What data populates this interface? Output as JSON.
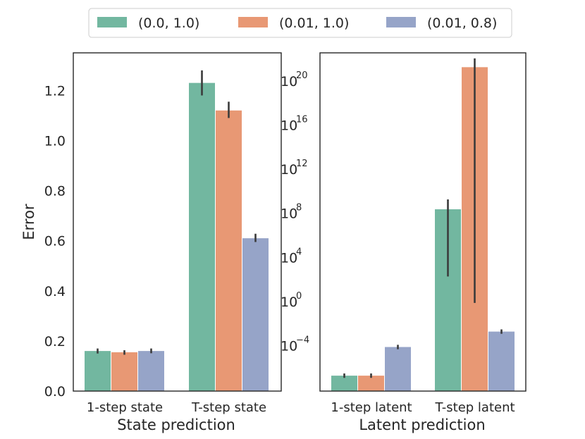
{
  "legend": {
    "entries": [
      "(0.0, 1.0)",
      "(0.01, 1.0)",
      "(0.01, 0.8)"
    ],
    "colors": [
      "#72b7a0",
      "#e89874",
      "#96a4c8"
    ]
  },
  "chart_data": [
    {
      "type": "bar",
      "title": "",
      "xlabel": "State prediction",
      "ylabel": "Error",
      "yscale": "linear",
      "ylim": [
        0,
        1.35
      ],
      "yticks": [
        0.0,
        0.2,
        0.4,
        0.6,
        0.8,
        1.0,
        1.2
      ],
      "ytick_labels": [
        "0.0",
        "0.2",
        "0.4",
        "0.6",
        "0.8",
        "1.0",
        "1.2"
      ],
      "categories": [
        "1-step state",
        "T-step state"
      ],
      "series": [
        {
          "name": "(0.0, 1.0)",
          "values": [
            0.16,
            1.23
          ],
          "err_low": [
            0.15,
            1.18
          ],
          "err_high": [
            0.17,
            1.28
          ]
        },
        {
          "name": "(0.01, 1.0)",
          "values": [
            0.155,
            1.12
          ],
          "err_low": [
            0.145,
            1.09
          ],
          "err_high": [
            0.163,
            1.155
          ]
        },
        {
          "name": "(0.01, 0.8)",
          "values": [
            0.16,
            0.61
          ],
          "err_low": [
            0.151,
            0.595
          ],
          "err_high": [
            0.17,
            0.628
          ]
        }
      ]
    },
    {
      "type": "bar",
      "title": "",
      "xlabel": "Latent prediction",
      "ylabel": "",
      "yscale": "log",
      "ylim_log10": [
        -8.2,
        22.5
      ],
      "yticks_exp": [
        -4,
        0,
        4,
        8,
        12,
        16,
        20
      ],
      "ytick_base": "10",
      "ytick_exps": [
        "−4",
        "0",
        "4",
        "8",
        "12",
        "16",
        "20"
      ],
      "categories": [
        "1-step latent",
        "T-step latent"
      ],
      "series": [
        {
          "name": "(0.0, 1.0)",
          "log10_values": [
            -6.8,
            8.3
          ],
          "log10_err_low": [
            -7.0,
            2.2
          ],
          "log10_err_high": [
            -6.6,
            9.2
          ]
        },
        {
          "name": "(0.01, 1.0)",
          "log10_values": [
            -6.8,
            21.2
          ],
          "log10_err_low": [
            -7.0,
            -0.2
          ],
          "log10_err_high": [
            -6.6,
            22.0
          ]
        },
        {
          "name": "(0.01, 0.8)",
          "log10_values": [
            -4.2,
            -2.8
          ],
          "log10_err_low": [
            -4.4,
            -3.0
          ],
          "log10_err_high": [
            -4.0,
            -2.6
          ]
        }
      ]
    }
  ]
}
